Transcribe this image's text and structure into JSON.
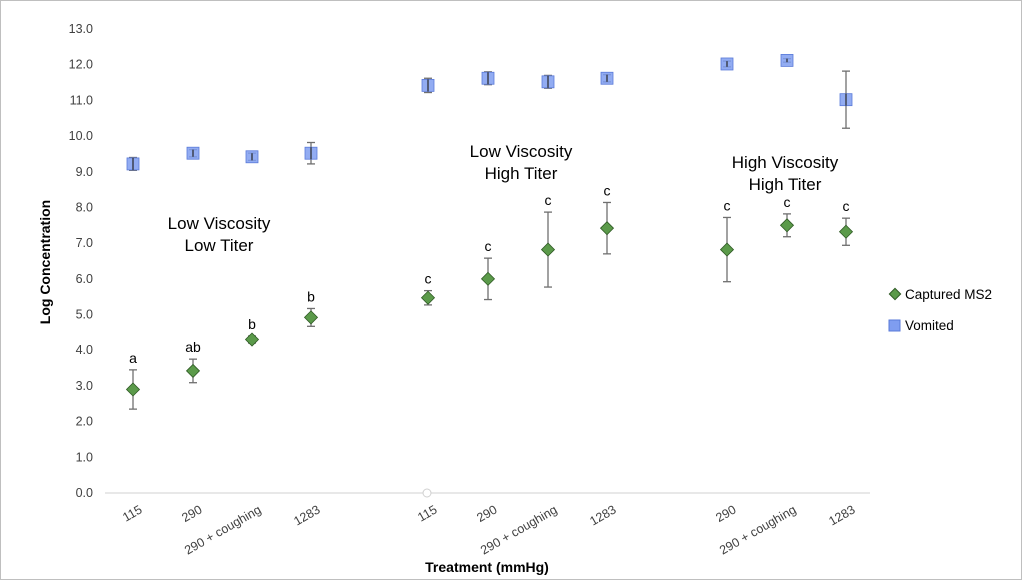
{
  "chart_data": {
    "type": "scatter",
    "xlabel": "Treatment (mmHg)",
    "ylabel": "Log Concentration",
    "ylim": [
      0,
      13
    ],
    "ytick_step": 1,
    "grid": false,
    "legend_position": "right",
    "groups": [
      {
        "label_lines": [
          "Low Viscosity",
          "Low Titer"
        ],
        "categories": [
          "115",
          "290",
          "290 + coughing",
          "1283"
        ]
      },
      {
        "label_lines": [
          "Low Viscosity",
          "High Titer"
        ],
        "categories": [
          "115",
          "290",
          "290 + coughing",
          "1283"
        ]
      },
      {
        "label_lines": [
          "High Viscosity",
          "High Titer"
        ],
        "categories": [
          "290",
          "290 + coughing",
          "1283"
        ]
      }
    ],
    "series": [
      {
        "name": "Captured MS2",
        "marker": "diamond",
        "color": "#5b9a4a",
        "edge_color": "#2f5a25",
        "values": [
          2.9,
          3.42,
          4.3,
          4.92,
          5.47,
          6.0,
          6.82,
          7.42,
          6.82,
          7.5,
          7.32
        ],
        "errors": [
          0.55,
          0.33,
          0.1,
          0.25,
          0.2,
          0.58,
          1.05,
          0.72,
          0.9,
          0.32,
          0.38
        ],
        "annotations": [
          "a",
          "ab",
          "b",
          "b",
          "c",
          "c",
          "c",
          "c",
          "c",
          "c",
          "c"
        ]
      },
      {
        "name": "Vomited",
        "marker": "square",
        "color": "#7f9df0",
        "edge_color": "#5a7ad9",
        "values": [
          9.22,
          9.52,
          9.42,
          9.52,
          11.42,
          11.62,
          11.52,
          11.62,
          12.02,
          12.12,
          11.02
        ],
        "errors": [
          0.18,
          0.1,
          0.1,
          0.3,
          0.2,
          0.18,
          0.18,
          0.1,
          0.08,
          0.05,
          0.8
        ]
      }
    ]
  }
}
